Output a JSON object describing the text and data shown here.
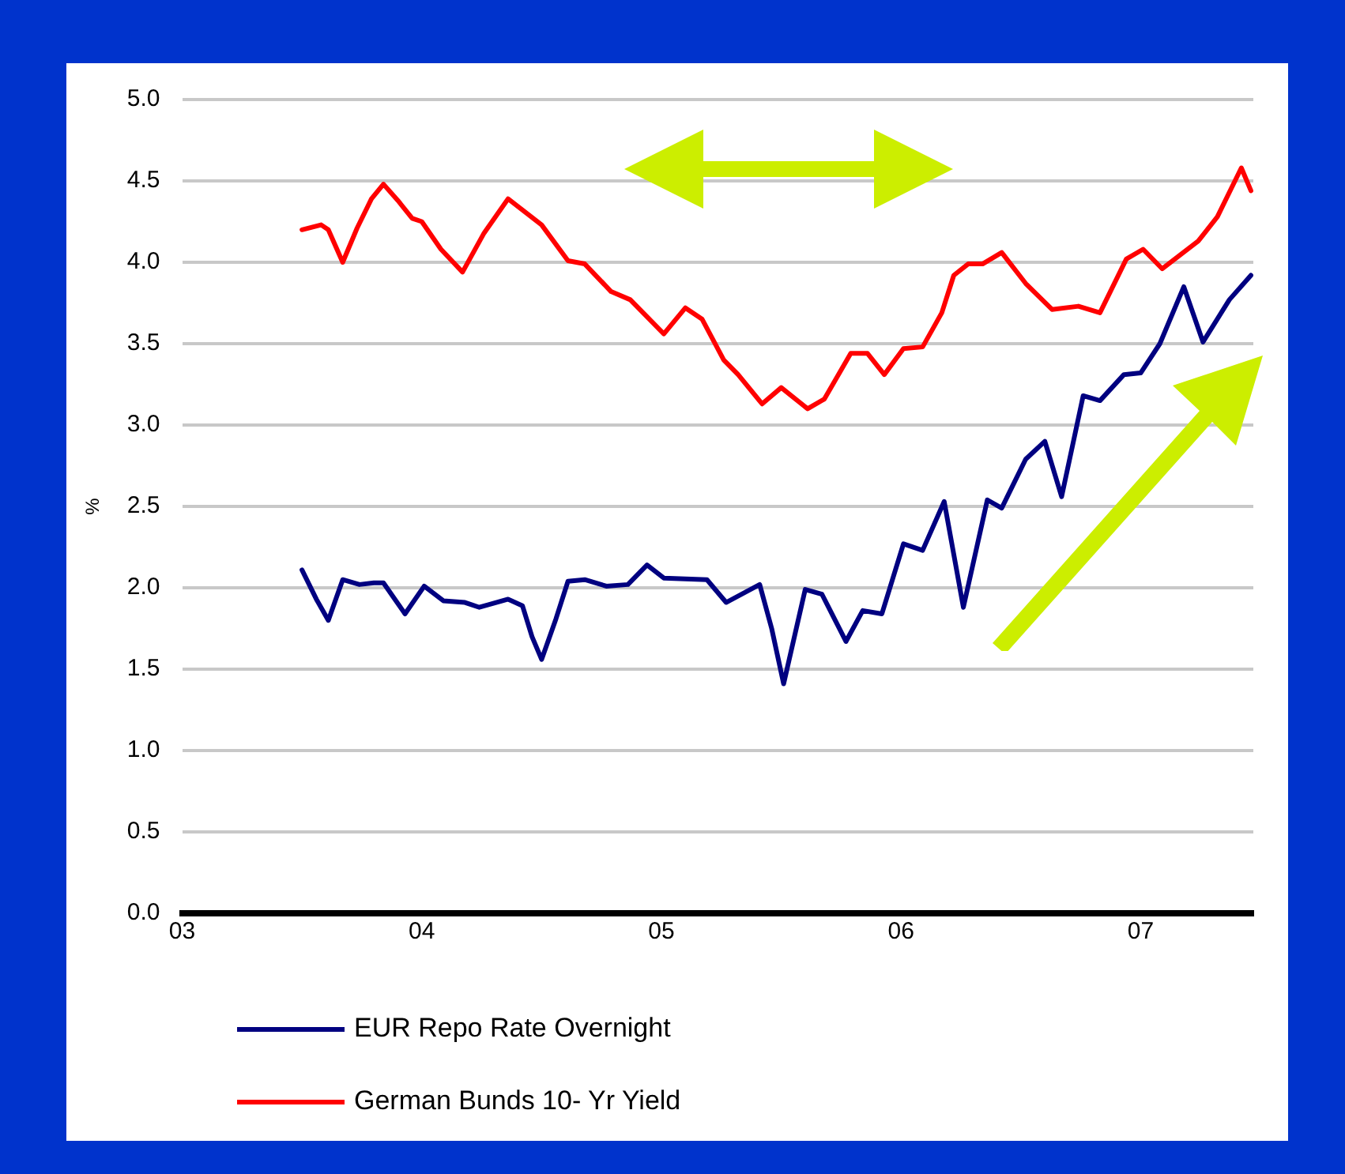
{
  "chart_data": {
    "type": "line",
    "ylabel": "%",
    "xlim": [
      2003,
      2007.47
    ],
    "xticks": [
      {
        "value": 2003,
        "label": "03"
      },
      {
        "value": 2004,
        "label": "04"
      },
      {
        "value": 2005,
        "label": "05"
      },
      {
        "value": 2006,
        "label": "06"
      },
      {
        "value": 2007,
        "label": "07"
      }
    ],
    "ylim": [
      0,
      5
    ],
    "yticks": [
      {
        "value": 0,
        "label": "0.0"
      },
      {
        "value": 0.5,
        "label": "0.5"
      },
      {
        "value": 1,
        "label": "1.0"
      },
      {
        "value": 1.5,
        "label": "1.5"
      },
      {
        "value": 2,
        "label": "2.0"
      },
      {
        "value": 2.5,
        "label": "2.5"
      },
      {
        "value": 3,
        "label": "3.0"
      },
      {
        "value": 3.5,
        "label": "3.5"
      },
      {
        "value": 4,
        "label": "4.0"
      },
      {
        "value": 4.5,
        "label": "4.5"
      },
      {
        "value": 5,
        "label": "5.0"
      }
    ],
    "grid": "y",
    "legend": "bottom",
    "marker": "none",
    "line_style": "solid",
    "series": [
      {
        "name": "EUR Repo Rate Overnight",
        "color": "#000080",
        "x": [
          2003.5,
          2003.56,
          2003.61,
          2003.67,
          2003.74,
          2003.8,
          2003.84,
          2003.93,
          2004.01,
          2004.09,
          2004.18,
          2004.24,
          2004.36,
          2004.42,
          2004.46,
          2004.5,
          2004.56,
          2004.61,
          2004.68,
          2004.77,
          2004.86,
          2004.94,
          2005.01,
          2005.19,
          2005.27,
          2005.41,
          2005.46,
          2005.51,
          2005.6,
          2005.67,
          2005.77,
          2005.84,
          2005.92,
          2006.01,
          2006.09,
          2006.18,
          2006.26,
          2006.36,
          2006.42,
          2006.52,
          2006.6,
          2006.67,
          2006.76,
          2006.83,
          2006.93,
          2007,
          2007.08,
          2007.18,
          2007.26,
          2007.37,
          2007.46
        ],
        "values": [
          2.11,
          1.93,
          1.8,
          2.05,
          2.02,
          2.03,
          2.03,
          1.84,
          2.01,
          1.92,
          1.91,
          1.88,
          1.93,
          1.89,
          1.7,
          1.56,
          1.81,
          2.04,
          2.05,
          2.01,
          2.02,
          2.14,
          2.06,
          2.05,
          1.91,
          2.02,
          1.75,
          1.41,
          1.99,
          1.96,
          1.67,
          1.86,
          1.84,
          2.27,
          2.23,
          2.53,
          1.88,
          2.54,
          2.49,
          2.79,
          2.9,
          2.56,
          3.18,
          3.15,
          3.31,
          3.32,
          3.5,
          3.85,
          3.51,
          3.77,
          3.92
        ]
      },
      {
        "name": "German Bunds 10- Yr Yield",
        "color": "#ff0000",
        "x": [
          2003.5,
          2003.58,
          2003.61,
          2003.67,
          2003.73,
          2003.79,
          2003.84,
          2003.9,
          2003.96,
          2004,
          2004.08,
          2004.17,
          2004.26,
          2004.36,
          2004.43,
          2004.5,
          2004.61,
          2004.68,
          2004.79,
          2004.87,
          2005.01,
          2005.1,
          2005.17,
          2005.26,
          2005.32,
          2005.42,
          2005.5,
          2005.61,
          2005.68,
          2005.79,
          2005.86,
          2005.93,
          2006.01,
          2006.09,
          2006.17,
          2006.22,
          2006.28,
          2006.34,
          2006.42,
          2006.52,
          2006.63,
          2006.74,
          2006.83,
          2006.94,
          2007.01,
          2007.09,
          2007.24,
          2007.32,
          2007.42,
          2007.46
        ],
        "values": [
          4.2,
          4.23,
          4.2,
          4,
          4.21,
          4.39,
          4.48,
          4.38,
          4.27,
          4.25,
          4.08,
          3.94,
          4.18,
          4.39,
          4.31,
          4.23,
          4.01,
          3.99,
          3.82,
          3.77,
          3.56,
          3.72,
          3.65,
          3.4,
          3.31,
          3.13,
          3.23,
          3.1,
          3.16,
          3.44,
          3.44,
          3.31,
          3.47,
          3.48,
          3.69,
          3.92,
          3.99,
          3.99,
          4.06,
          3.87,
          3.71,
          3.73,
          3.69,
          4.02,
          4.08,
          3.96,
          4.13,
          4.28,
          4.58,
          4.44
        ]
      }
    ]
  }
}
